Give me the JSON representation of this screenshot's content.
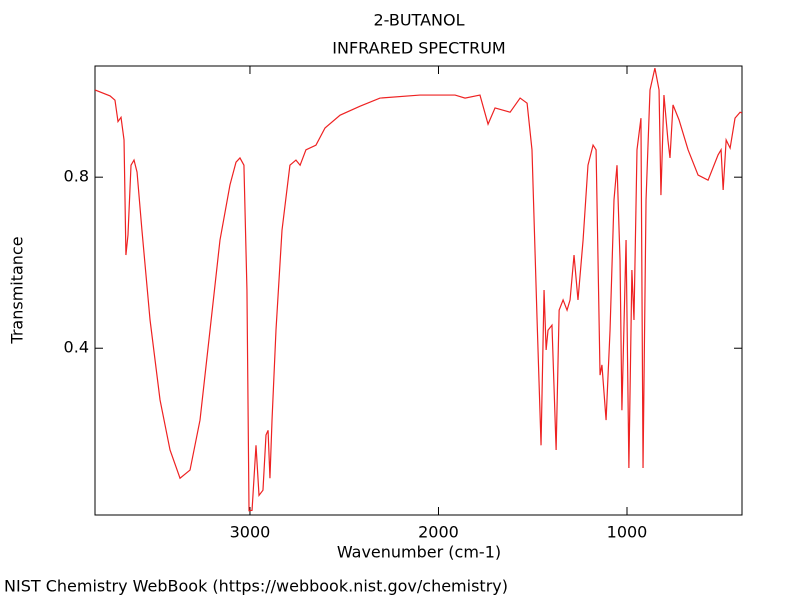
{
  "chart_data": {
    "type": "line",
    "title": "2-BUTANOL",
    "subtitle": "INFRARED SPECTRUM",
    "x_label": "Wavenumber (cm-1)",
    "y_label": "Transmitance",
    "xlim": [
      3822,
      390
    ],
    "ylim": [
      0.01,
      1.06
    ],
    "xticks": [
      3000,
      2000,
      1000
    ],
    "yticks": [
      0.4,
      0.8
    ],
    "x": [
      3822,
      3742,
      3716,
      3700,
      3684,
      3668,
      3658,
      3647,
      3631,
      3615,
      3599,
      3573,
      3530,
      3477,
      3424,
      3371,
      3318,
      3265,
      3212,
      3159,
      3106,
      3074,
      3053,
      3032,
      3016,
      3005,
      2989,
      2968,
      2952,
      2931,
      2915,
      2904,
      2894,
      2883,
      2862,
      2830,
      2788,
      2756,
      2734,
      2703,
      2650,
      2602,
      2522,
      2416,
      2310,
      2098,
      1912,
      1859,
      1780,
      1737,
      1700,
      1620,
      1567,
      1530,
      1504,
      1477,
      1456,
      1440,
      1429,
      1419,
      1398,
      1376,
      1360,
      1339,
      1318,
      1302,
      1281,
      1260,
      1233,
      1207,
      1180,
      1164,
      1143,
      1133,
      1111,
      1090,
      1069,
      1053,
      1037,
      1027,
      1005,
      990,
      974,
      963,
      947,
      926,
      915,
      899,
      878,
      852,
      830,
      820,
      804,
      783,
      772,
      756,
      724,
      676,
      623,
      570,
      517,
      501,
      490,
      474,
      453,
      427,
      400,
      390
    ],
    "series": [
      {
        "color": "#ee2222",
        "values": [
          1.004,
          0.99,
          0.98,
          0.93,
          0.94,
          0.887,
          0.618,
          0.665,
          0.828,
          0.84,
          0.812,
          0.676,
          0.466,
          0.279,
          0.162,
          0.096,
          0.115,
          0.232,
          0.442,
          0.653,
          0.782,
          0.835,
          0.845,
          0.828,
          0.536,
          0.02,
          0.021,
          0.173,
          0.056,
          0.068,
          0.197,
          0.208,
          0.096,
          0.232,
          0.442,
          0.676,
          0.828,
          0.84,
          0.828,
          0.864,
          0.875,
          0.915,
          0.945,
          0.966,
          0.985,
          0.992,
          0.992,
          0.985,
          0.992,
          0.924,
          0.962,
          0.952,
          0.985,
          0.973,
          0.864,
          0.466,
          0.173,
          0.536,
          0.396,
          0.442,
          0.454,
          0.162,
          0.489,
          0.513,
          0.489,
          0.513,
          0.618,
          0.513,
          0.653,
          0.828,
          0.875,
          0.864,
          0.337,
          0.361,
          0.232,
          0.442,
          0.747,
          0.828,
          0.606,
          0.255,
          0.653,
          0.12,
          0.583,
          0.466,
          0.864,
          0.938,
          0.12,
          0.747,
          1.004,
          1.055,
          1.004,
          0.758,
          0.992,
          0.887,
          0.845,
          0.969,
          0.934,
          0.864,
          0.805,
          0.793,
          0.852,
          0.864,
          0.77,
          0.887,
          0.868,
          0.938,
          0.952,
          0.95
        ]
      }
    ]
  },
  "footer": "NIST Chemistry WebBook (https://webbook.nist.gov/chemistry)"
}
